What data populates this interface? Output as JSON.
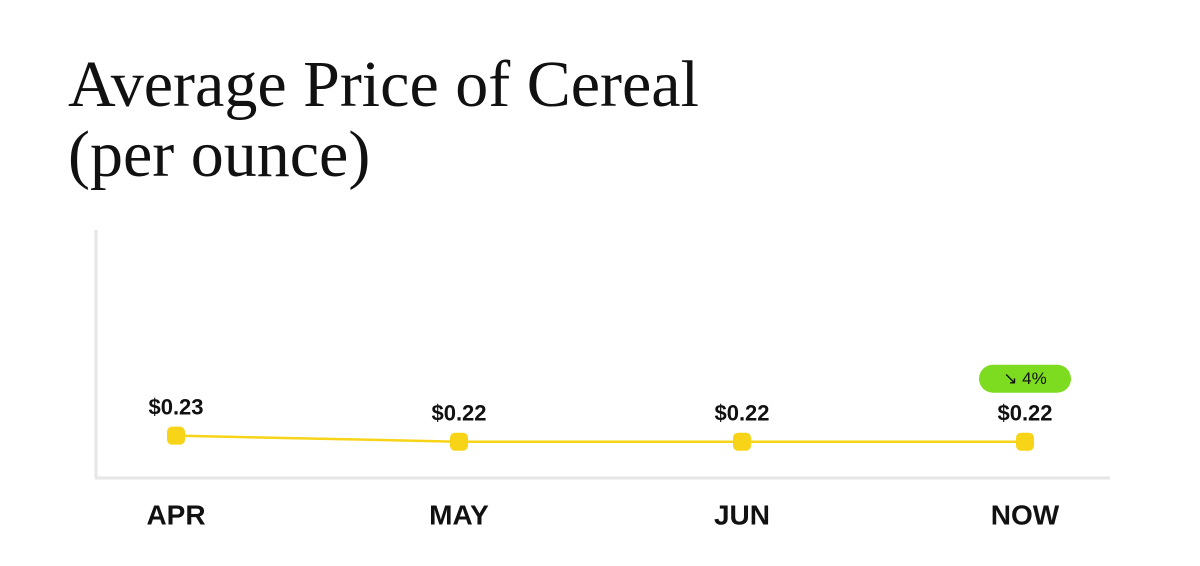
{
  "chart_data": {
    "type": "line",
    "title": "Average Price of Cereal (per ounce)",
    "categories": [
      "APR",
      "MAY",
      "JUN",
      "NOW"
    ],
    "values": [
      0.23,
      0.22,
      0.22,
      0.22
    ],
    "value_labels": [
      "$0.23",
      "$0.22",
      "$0.22",
      "$0.22"
    ],
    "color": "#f7d417",
    "ylim": [
      0.16,
      0.57
    ],
    "annotation": "↘ 4%",
    "annotation_color": "#7ddc1f"
  }
}
